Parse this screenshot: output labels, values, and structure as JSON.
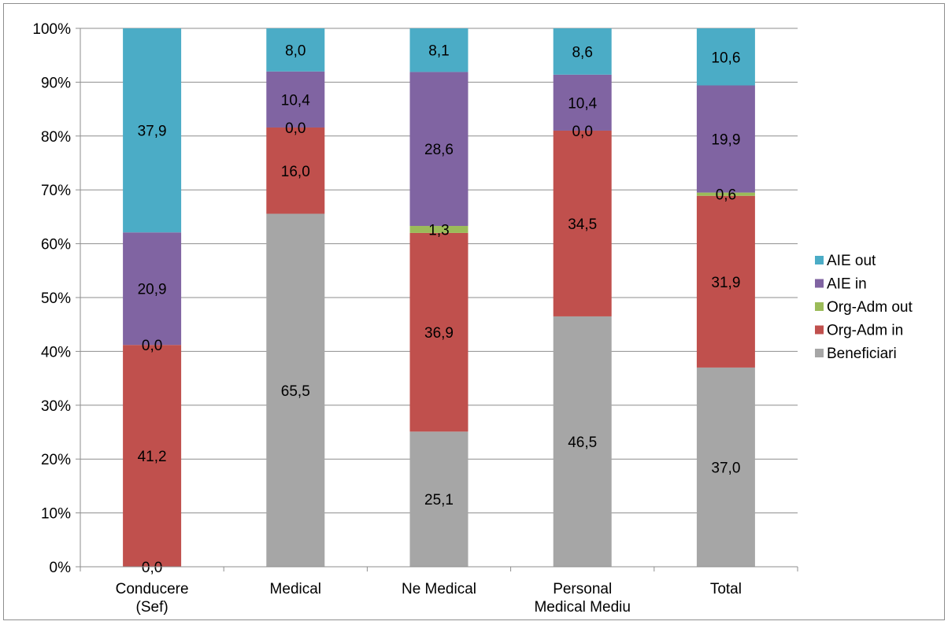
{
  "chart_data": {
    "type": "bar",
    "stacked": true,
    "normalized": true,
    "categories": [
      [
        "Conducere",
        "(Sef)"
      ],
      [
        "Medical"
      ],
      [
        "Ne Medical"
      ],
      [
        "Personal",
        "Medical Mediu"
      ],
      [
        "Total"
      ]
    ],
    "series": [
      {
        "name": "Beneficiari",
        "color": "#a6a6a6",
        "values": [
          0.0,
          65.5,
          25.1,
          46.5,
          37.0
        ],
        "labels": [
          "0,0",
          "65,5",
          "25,1",
          "46,5",
          "37,0"
        ]
      },
      {
        "name": "Org-Adm in",
        "color": "#c0504d",
        "values": [
          41.2,
          16.0,
          36.9,
          34.5,
          31.9
        ],
        "labels": [
          "41,2",
          "16,0",
          "36,9",
          "34,5",
          "31,9"
        ]
      },
      {
        "name": "Org-Adm out",
        "color": "#9bbb59",
        "values": [
          0.0,
          0.0,
          1.3,
          0.0,
          0.6
        ],
        "labels": [
          "0,0",
          "0,0",
          "1,3",
          "0,0",
          "0,6"
        ]
      },
      {
        "name": "AIE in",
        "color": "#8064a2",
        "values": [
          20.9,
          10.4,
          28.6,
          10.4,
          19.9
        ],
        "labels": [
          "20,9",
          "10,4",
          "28,6",
          "10,4",
          "19,9"
        ]
      },
      {
        "name": "AIE out",
        "color": "#4bacc6",
        "values": [
          37.9,
          8.0,
          8.1,
          8.6,
          10.6
        ],
        "labels": [
          "37,9",
          "8,0",
          "8,1",
          "8,6",
          "10,6"
        ]
      }
    ],
    "y_ticks": [
      "0%",
      "10%",
      "20%",
      "30%",
      "40%",
      "50%",
      "60%",
      "70%",
      "80%",
      "90%",
      "100%"
    ],
    "ylim": [
      0,
      100
    ],
    "grid": true,
    "legend": "right",
    "legend_order": [
      "AIE out",
      "AIE in",
      "Org-Adm out",
      "Org-Adm in",
      "Beneficiari"
    ],
    "colors": {
      "grid": "#8e8e8e",
      "axis": "#8e8e8e"
    }
  }
}
